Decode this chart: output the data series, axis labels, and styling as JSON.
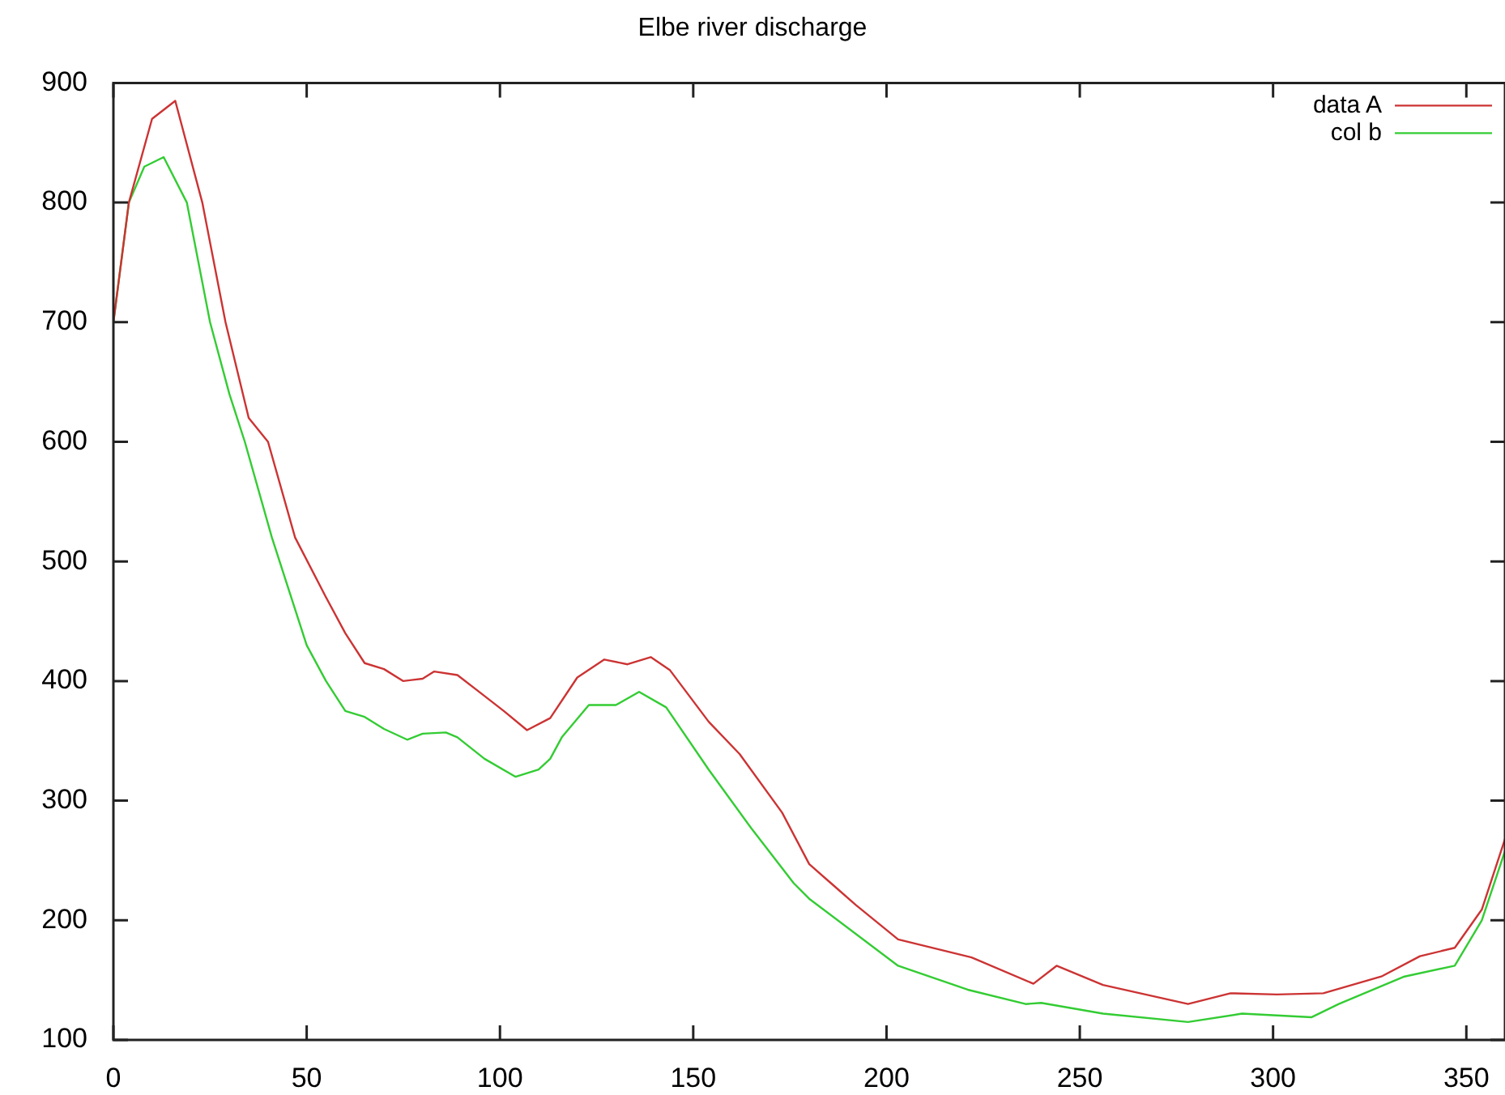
{
  "chart_data": {
    "type": "line",
    "title": "Elbe river discharge",
    "xlim": [
      0,
      360
    ],
    "xticks": [
      0,
      50,
      100,
      150,
      200,
      250,
      300,
      350
    ],
    "ylim": [
      100,
      900
    ],
    "yticks": [
      100,
      200,
      300,
      400,
      500,
      600,
      700,
      800,
      900
    ],
    "grid": false,
    "legend": "top right",
    "marker": "none",
    "line_style": "solid",
    "series": [
      {
        "name": "data A",
        "color": "#cc3333",
        "x": [
          0,
          4,
          10,
          16,
          23,
          29,
          35,
          40,
          47,
          55,
          60,
          65,
          70,
          75,
          80,
          83,
          89,
          95,
          101,
          107,
          113,
          120,
          127,
          133,
          139,
          144,
          154,
          162,
          173,
          180,
          186,
          192,
          203,
          222,
          238,
          244,
          256,
          278,
          289,
          301,
          313,
          328,
          338,
          347,
          354,
          360
        ],
        "values": [
          700,
          800,
          870,
          885,
          800,
          700,
          620,
          600,
          520,
          470,
          440,
          415,
          410,
          400,
          402,
          408,
          405,
          390,
          375,
          359,
          369,
          403,
          418,
          414,
          420,
          409,
          366,
          339,
          290,
          247,
          230,
          213,
          184,
          169,
          147,
          162,
          146,
          130,
          139,
          138,
          139,
          153,
          170,
          177,
          209,
          268
        ]
      },
      {
        "name": "col b",
        "color": "#33cc33",
        "x": [
          0,
          4,
          8,
          13,
          19,
          25,
          30,
          34,
          41,
          50,
          55,
          60,
          65,
          70,
          76,
          80,
          86,
          89,
          96,
          104,
          110,
          113,
          116,
          123,
          130,
          136,
          143,
          154,
          165,
          176,
          180,
          203,
          221,
          236,
          240,
          256,
          278,
          292,
          310,
          317,
          334,
          347,
          354,
          360
        ],
        "values": [
          700,
          800,
          830,
          838,
          800,
          700,
          640,
          600,
          520,
          430,
          400,
          375,
          370,
          360,
          351,
          356,
          357,
          353,
          335,
          320,
          326,
          335,
          353,
          380,
          380,
          391,
          378,
          326,
          277,
          231,
          218,
          162,
          142,
          130,
          131,
          122,
          115,
          122,
          119,
          130,
          153,
          162,
          200,
          258
        ]
      }
    ]
  }
}
